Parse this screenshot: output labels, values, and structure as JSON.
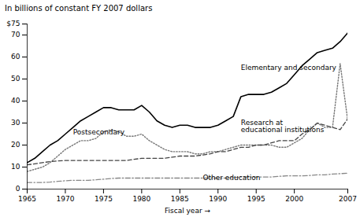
{
  "chart_data": {
    "type": "line",
    "title": "In billions of constant FY 2007 dollars",
    "x_label": "Fiscal year",
    "x": [
      1965,
      1966,
      1967,
      1968,
      1969,
      1970,
      1971,
      1972,
      1973,
      1974,
      1975,
      1976,
      1977,
      1978,
      1979,
      1980,
      1981,
      1982,
      1983,
      1984,
      1985,
      1986,
      1987,
      1988,
      1989,
      1990,
      1991,
      1992,
      1993,
      1994,
      1995,
      1996,
      1997,
      1998,
      1999,
      2000,
      2001,
      2002,
      2003,
      2004,
      2005,
      2006,
      2007
    ],
    "series": [
      {
        "name": "Elementary and secondary",
        "color": "#000000",
        "line_style": "solid",
        "values": [
          12,
          14,
          17,
          20,
          22,
          25,
          28,
          31,
          33,
          35,
          37,
          37,
          36,
          36,
          36,
          38,
          35,
          31,
          29,
          28,
          29,
          29,
          28,
          28,
          28,
          29,
          31,
          33,
          42,
          43,
          43,
          43,
          44,
          46,
          48,
          52,
          56,
          59,
          62,
          63,
          64,
          67,
          71
        ]
      },
      {
        "name": "Postsecondary",
        "color": "#777777",
        "line_style": "dotted",
        "values": [
          8,
          9,
          10,
          12,
          15,
          18,
          20,
          22,
          22,
          23,
          26,
          27,
          26,
          24,
          24,
          25,
          22,
          20,
          18,
          17,
          17,
          17,
          16,
          16,
          17,
          17,
          18,
          19,
          20,
          20,
          20,
          20,
          20,
          19,
          19,
          21,
          23,
          27,
          30,
          28,
          28,
          57,
          31
        ]
      },
      {
        "name": "Research at\neducational institutions",
        "color": "#444444",
        "line_style": "dashed",
        "values": [
          11,
          11.5,
          12,
          12.5,
          12.8,
          13,
          13,
          13,
          13,
          13,
          13,
          13,
          13,
          13,
          13.5,
          14,
          14,
          14,
          14,
          14.5,
          15,
          15,
          15,
          15.5,
          16,
          17,
          17,
          18,
          19,
          19,
          20,
          20,
          21,
          22,
          22,
          22,
          25,
          27,
          30,
          29,
          28,
          27,
          32
        ]
      },
      {
        "name": "Other education",
        "color": "#888888",
        "line_style": "dashdot",
        "values": [
          3,
          3,
          3,
          3.2,
          3.5,
          3.8,
          4,
          4,
          4,
          4.2,
          4.5,
          4.8,
          5,
          5,
          5,
          5,
          5,
          5,
          5,
          5,
          5,
          5,
          5,
          5,
          5,
          5,
          5,
          5.2,
          5.5,
          5.5,
          5.5,
          5.5,
          5.5,
          5.8,
          6,
          6,
          6,
          6.2,
          6.5,
          6.5,
          6.8,
          7,
          7.2
        ]
      }
    ],
    "annotations": [
      {
        "text": "Elementary and secondary",
        "x": 1993,
        "y": 54
      },
      {
        "text": "Postsecondary",
        "x": 1971,
        "y": 25
      },
      {
        "text": "Research at\neducational institutions",
        "x": 1993,
        "y": 26
      },
      {
        "text": "Other education",
        "x": 1988,
        "y": 4
      }
    ],
    "xlim": [
      1965,
      2007
    ],
    "xticks": [
      1965,
      1970,
      1975,
      1980,
      1985,
      1990,
      1995,
      2000,
      2007
    ],
    "ylim": [
      0,
      75
    ],
    "yticks": [
      0,
      10,
      20,
      30,
      40,
      50,
      60,
      70,
      {
        "value": 75,
        "label": "$75"
      }
    ],
    "grid": false
  }
}
